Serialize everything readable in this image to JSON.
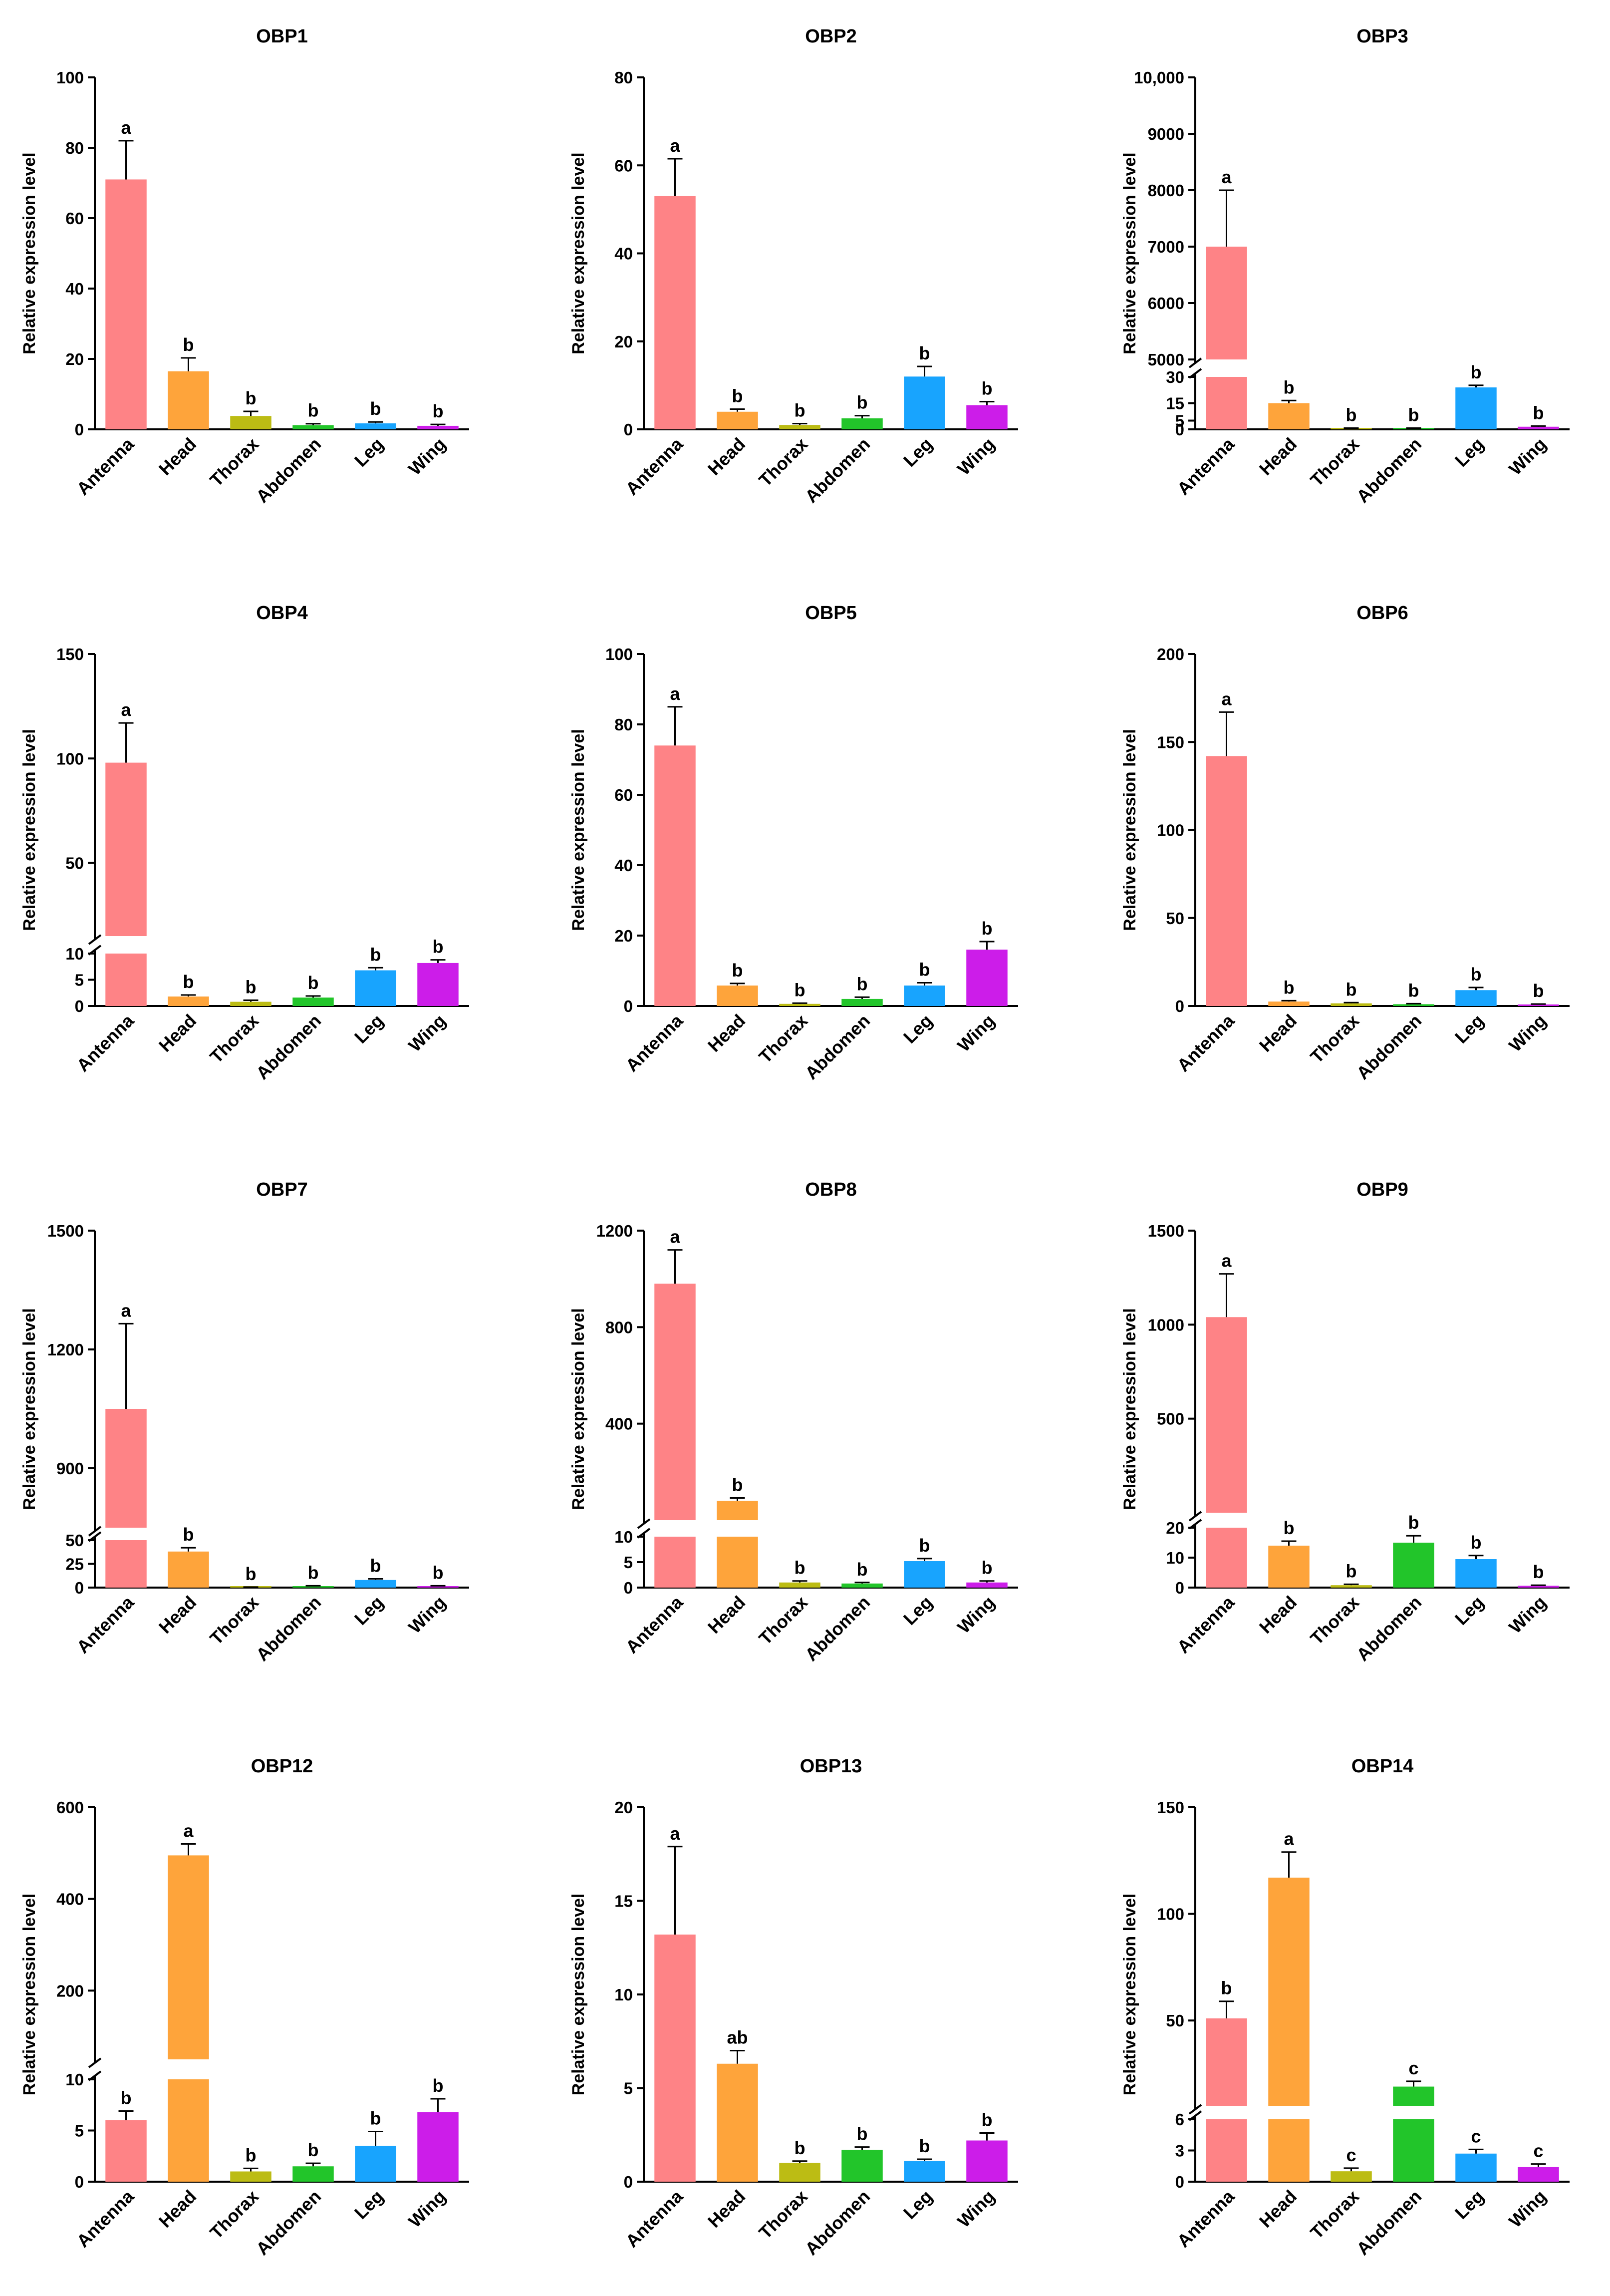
{
  "figure": {
    "categories": [
      "Antenna",
      "Head",
      "Thorax",
      "Abdomen",
      "Leg",
      "Wing"
    ],
    "colors": [
      "#fe8386",
      "#fea43b",
      "#bcbc14",
      "#22c52a",
      "#18a4fe",
      "#cc1de9"
    ],
    "ylabel": "Relative expression level"
  },
  "chart_data": [
    {
      "type": "bar",
      "title": "OBP1",
      "ylabel": "Relative expression level",
      "categories": [
        "Antenna",
        "Head",
        "Thorax",
        "Abdomen",
        "Leg",
        "Wing"
      ],
      "values": [
        71,
        16.5,
        3.8,
        1.2,
        1.7,
        1.0
      ],
      "errors": [
        11,
        3.8,
        1.3,
        0.4,
        0.4,
        0.4
      ],
      "letters": [
        "a",
        "b",
        "b",
        "b",
        "b",
        "b"
      ],
      "ylim": [
        0,
        100
      ],
      "yticks": [
        0,
        20,
        40,
        60,
        80,
        100
      ],
      "tick_labels": [
        "0",
        "20",
        "40",
        "60",
        "80",
        "100"
      ]
    },
    {
      "type": "bar",
      "title": "OBP2",
      "ylabel": "Relative expression level",
      "categories": [
        "Antenna",
        "Head",
        "Thorax",
        "Abdomen",
        "Leg",
        "Wing"
      ],
      "values": [
        53,
        4.0,
        1.0,
        2.5,
        12,
        5.5
      ],
      "errors": [
        8.5,
        0.6,
        0.3,
        0.6,
        2.3,
        0.8
      ],
      "letters": [
        "a",
        "b",
        "b",
        "b",
        "b",
        "b"
      ],
      "ylim": [
        0,
        80
      ],
      "yticks": [
        0,
        20,
        40,
        60,
        80
      ],
      "tick_labels": [
        "0",
        "20",
        "40",
        "60",
        "80"
      ]
    },
    {
      "type": "bar",
      "title": "OBP3",
      "ylabel": "Relative expression level",
      "categories": [
        "Antenna",
        "Head",
        "Thorax",
        "Abdomen",
        "Leg",
        "Wing"
      ],
      "values": [
        7000,
        15,
        0.5,
        0.5,
        24,
        1.5
      ],
      "errors": [
        1000,
        1.5,
        0.2,
        0.2,
        1.2,
        0.4
      ],
      "letters": [
        "a",
        "b",
        "b",
        "b",
        "b",
        "b"
      ],
      "axis_break": {
        "lower": [
          0,
          30
        ],
        "upper": [
          5000,
          10000
        ]
      },
      "lower_ticks": [
        0,
        5,
        15,
        30
      ],
      "lower_tick_labels": [
        "0",
        "5",
        "15",
        "30"
      ],
      "upper_ticks": [
        5000,
        6000,
        7000,
        8000,
        9000,
        10000
      ],
      "upper_tick_labels": [
        "5000",
        "6000",
        "7000",
        "8000",
        "9000",
        "10,000"
      ]
    },
    {
      "type": "bar",
      "title": "OBP4",
      "ylabel": "Relative expression level",
      "categories": [
        "Antenna",
        "Head",
        "Thorax",
        "Abdomen",
        "Leg",
        "Wing"
      ],
      "values": [
        98,
        1.8,
        0.8,
        1.6,
        6.8,
        8.2
      ],
      "errors": [
        19,
        0.3,
        0.3,
        0.3,
        0.5,
        0.6
      ],
      "letters": [
        "a",
        "b",
        "b",
        "b",
        "b",
        "b"
      ],
      "axis_break": {
        "lower": [
          0,
          10
        ],
        "upper": [
          15,
          150
        ]
      },
      "lower_ticks": [
        0,
        5,
        10
      ],
      "lower_tick_labels": [
        "0",
        "5",
        "10"
      ],
      "upper_ticks": [
        50,
        100,
        150
      ],
      "upper_tick_labels": [
        "50",
        "100",
        "150"
      ]
    },
    {
      "type": "bar",
      "title": "OBP5",
      "ylabel": "Relative expression level",
      "categories": [
        "Antenna",
        "Head",
        "Thorax",
        "Abdomen",
        "Leg",
        "Wing"
      ],
      "values": [
        74,
        5.8,
        0.6,
        2.0,
        5.8,
        16
      ],
      "errors": [
        11,
        0.6,
        0.2,
        0.5,
        0.8,
        2.3
      ],
      "letters": [
        "a",
        "b",
        "b",
        "b",
        "b",
        "b"
      ],
      "ylim": [
        0,
        100
      ],
      "yticks": [
        0,
        20,
        40,
        60,
        80,
        100
      ],
      "tick_labels": [
        "0",
        "20",
        "40",
        "60",
        "80",
        "100"
      ]
    },
    {
      "type": "bar",
      "title": "OBP6",
      "ylabel": "Relative expression level",
      "categories": [
        "Antenna",
        "Head",
        "Thorax",
        "Abdomen",
        "Leg",
        "Wing"
      ],
      "values": [
        142,
        2.5,
        1.5,
        1.0,
        9.0,
        0.8
      ],
      "errors": [
        25,
        0.5,
        0.4,
        0.3,
        1.5,
        0.3
      ],
      "letters": [
        "a",
        "b",
        "b",
        "b",
        "b",
        "b"
      ],
      "ylim": [
        0,
        200
      ],
      "yticks": [
        0,
        50,
        100,
        150,
        200
      ],
      "tick_labels": [
        "0",
        "50",
        "100",
        "150",
        "200"
      ]
    },
    {
      "type": "bar",
      "title": "OBP7",
      "ylabel": "Relative expression level",
      "categories": [
        "Antenna",
        "Head",
        "Thorax",
        "Abdomen",
        "Leg",
        "Wing"
      ],
      "values": [
        1050,
        38,
        0.3,
        1.5,
        8,
        1.5
      ],
      "errors": [
        215,
        4,
        0.2,
        0.4,
        1.2,
        0.4
      ],
      "letters": [
        "a",
        "b",
        "b",
        "b",
        "b",
        "b"
      ],
      "axis_break": {
        "lower": [
          0,
          50
        ],
        "upper": [
          750,
          1500
        ]
      },
      "lower_ticks": [
        0,
        25,
        50
      ],
      "lower_tick_labels": [
        "0",
        "25",
        "50"
      ],
      "upper_ticks": [
        900,
        1200,
        1500
      ],
      "upper_tick_labels": [
        "900",
        "1200",
        "1500"
      ]
    },
    {
      "type": "bar",
      "title": "OBP8",
      "ylabel": "Relative expression level",
      "categories": [
        "Antenna",
        "Head",
        "Thorax",
        "Abdomen",
        "Leg",
        "Wing"
      ],
      "values": [
        980,
        80,
        1.0,
        0.8,
        5.2,
        1.0
      ],
      "errors": [
        140,
        12,
        0.3,
        0.2,
        0.5,
        0.3
      ],
      "letters": [
        "a",
        "b",
        "b",
        "b",
        "b",
        "b"
      ],
      "axis_break": {
        "lower": [
          0,
          10
        ],
        "upper": [
          0,
          1200
        ]
      },
      "lower_ticks": [
        0,
        5,
        10
      ],
      "lower_tick_labels": [
        "0",
        "5",
        "10"
      ],
      "upper_ticks": [
        400,
        800,
        1200
      ],
      "upper_tick_labels": [
        "400",
        "800",
        "1200"
      ]
    },
    {
      "type": "bar",
      "title": "OBP9",
      "ylabel": "Relative expression level",
      "categories": [
        "Antenna",
        "Head",
        "Thorax",
        "Abdomen",
        "Leg",
        "Wing"
      ],
      "values": [
        1040,
        14,
        0.8,
        15,
        9.5,
        0.6
      ],
      "errors": [
        230,
        1.5,
        0.3,
        2.3,
        1.2,
        0.2
      ],
      "letters": [
        "a",
        "b",
        "b",
        "b",
        "b",
        "b"
      ],
      "axis_break": {
        "lower": [
          0,
          20
        ],
        "upper": [
          0,
          1500
        ]
      },
      "lower_ticks": [
        0,
        10,
        20
      ],
      "lower_tick_labels": [
        "0",
        "10",
        "20"
      ],
      "upper_ticks": [
        500,
        1000,
        1500
      ],
      "upper_tick_labels": [
        "500",
        "1000",
        "1500"
      ]
    },
    {
      "type": "bar",
      "title": "OBP12",
      "ylabel": "Relative expression level",
      "categories": [
        "Antenna",
        "Head",
        "Thorax",
        "Abdomen",
        "Leg",
        "Wing"
      ],
      "values": [
        6.0,
        495,
        1.0,
        1.5,
        3.5,
        6.8
      ],
      "errors": [
        0.9,
        25,
        0.3,
        0.3,
        1.4,
        1.3
      ],
      "letters": [
        "b",
        "a",
        "b",
        "b",
        "b",
        "b"
      ],
      "axis_break": {
        "lower": [
          0,
          10
        ],
        "upper": [
          50,
          600
        ]
      },
      "lower_ticks": [
        0,
        5,
        10
      ],
      "lower_tick_labels": [
        "0",
        "5",
        "10"
      ],
      "upper_ticks": [
        200,
        400,
        600
      ],
      "upper_tick_labels": [
        "200",
        "400",
        "600"
      ]
    },
    {
      "type": "bar",
      "title": "OBP13",
      "ylabel": "Relative expression level",
      "categories": [
        "Antenna",
        "Head",
        "Thorax",
        "Abdomen",
        "Leg",
        "Wing"
      ],
      "values": [
        13.2,
        6.3,
        1.0,
        1.7,
        1.1,
        2.2
      ],
      "errors": [
        4.7,
        0.7,
        0.1,
        0.15,
        0.1,
        0.4
      ],
      "letters": [
        "a",
        "ab",
        "b",
        "b",
        "b",
        "b"
      ],
      "ylim": [
        0,
        20
      ],
      "yticks": [
        0,
        5,
        10,
        15,
        20
      ],
      "tick_labels": [
        "0",
        "5",
        "10",
        "15",
        "20"
      ]
    },
    {
      "type": "bar",
      "title": "OBP14",
      "ylabel": "Relative expression level",
      "categories": [
        "Antenna",
        "Head",
        "Thorax",
        "Abdomen",
        "Leg",
        "Wing"
      ],
      "values": [
        51,
        117,
        1.0,
        19,
        2.7,
        1.4
      ],
      "errors": [
        8,
        12,
        0.3,
        2.5,
        0.4,
        0.3
      ],
      "letters": [
        "b",
        "a",
        "c",
        "c",
        "c",
        "c"
      ],
      "axis_break": {
        "lower": [
          0,
          6
        ],
        "upper": [
          10,
          150
        ]
      },
      "lower_ticks": [
        0,
        3,
        6
      ],
      "lower_tick_labels": [
        "0",
        "3",
        "6"
      ],
      "upper_ticks": [
        50,
        100,
        150
      ],
      "upper_tick_labels": [
        "50",
        "100",
        "150"
      ]
    }
  ]
}
